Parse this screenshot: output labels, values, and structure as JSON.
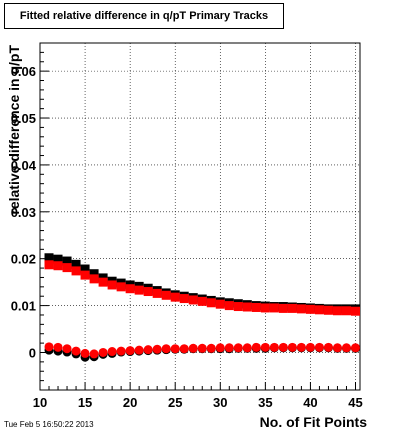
{
  "chart_data": {
    "type": "scatter",
    "title": "Fitted relative difference in q/pT Primary Tracks",
    "xlabel": "No. of Fit Points",
    "ylabel": "relative difference in q/pT",
    "xlim": [
      10,
      45.5
    ],
    "ylim": [
      -0.008,
      0.066
    ],
    "x_ticks": [
      10,
      15,
      20,
      25,
      30,
      35,
      40,
      45
    ],
    "y_ticks": [
      0,
      0.01,
      0.02,
      0.03,
      0.04,
      0.05,
      0.06
    ],
    "y_tick_labels": [
      "0",
      "0.01",
      "0.02",
      "0.03",
      "0.04",
      "0.05",
      "0.06"
    ],
    "grid": true,
    "series": [
      {
        "color": "#000000",
        "marker": "square",
        "x": [
          11,
          12,
          13,
          14,
          15,
          16,
          17,
          18,
          19,
          20,
          21,
          22,
          23,
          24,
          25,
          26,
          27,
          28,
          29,
          30,
          31,
          32,
          33,
          34,
          35,
          36,
          37,
          38,
          39,
          40,
          41,
          42,
          43,
          44,
          45
        ],
        "y": [
          0.0202,
          0.0199,
          0.0195,
          0.0188,
          0.0178,
          0.0168,
          0.0159,
          0.0152,
          0.0148,
          0.0144,
          0.0141,
          0.0137,
          0.0132,
          0.0127,
          0.0123,
          0.012,
          0.0117,
          0.0114,
          0.0111,
          0.0108,
          0.0106,
          0.0104,
          0.0102,
          0.01,
          0.0099,
          0.0098,
          0.0098,
          0.0097,
          0.0096,
          0.0095,
          0.0094,
          0.0093,
          0.0093,
          0.0093,
          0.0093
        ]
      },
      {
        "color": "#ff0000",
        "marker": "square",
        "x": [
          11,
          12,
          13,
          14,
          15,
          16,
          17,
          18,
          19,
          20,
          21,
          22,
          23,
          24,
          25,
          26,
          27,
          28,
          29,
          30,
          31,
          32,
          33,
          34,
          35,
          36,
          37,
          38,
          39,
          40,
          41,
          42,
          43,
          44,
          45
        ],
        "y": [
          0.0187,
          0.0185,
          0.0181,
          0.0174,
          0.0165,
          0.0157,
          0.015,
          0.0144,
          0.014,
          0.0136,
          0.0133,
          0.013,
          0.0126,
          0.0122,
          0.0118,
          0.0115,
          0.0112,
          0.0109,
          0.0106,
          0.0103,
          0.01,
          0.0098,
          0.0097,
          0.0096,
          0.0095,
          0.0095,
          0.0094,
          0.0094,
          0.0093,
          0.0092,
          0.0091,
          0.009,
          0.0089,
          0.0089,
          0.0088
        ]
      },
      {
        "color": "#000000",
        "marker": "circle",
        "x": [
          11,
          12,
          13,
          14,
          15,
          16,
          17,
          18,
          19,
          20,
          21,
          22,
          23,
          24,
          25,
          26,
          27,
          28,
          29,
          30,
          31,
          32,
          33,
          34,
          35,
          36,
          37,
          38,
          39,
          40,
          41,
          42,
          43,
          44,
          45
        ],
        "y": [
          0.0005,
          0.0003,
          0.0001,
          -0.0003,
          -0.001,
          -0.0009,
          -0.0004,
          -0.0002,
          0.0001,
          0.0002,
          0.0003,
          0.0004,
          0.0005,
          0.0006,
          0.0007,
          0.0007,
          0.0008,
          0.0008,
          0.0008,
          0.0008,
          0.0008,
          0.0009,
          0.0009,
          0.0009,
          0.0009,
          0.001,
          0.001,
          0.001,
          0.001,
          0.001,
          0.001,
          0.001,
          0.0009,
          0.0009,
          0.0009
        ]
      },
      {
        "color": "#ff0000",
        "marker": "circle",
        "x": [
          11,
          12,
          13,
          14,
          15,
          16,
          17,
          18,
          19,
          20,
          21,
          22,
          23,
          24,
          25,
          26,
          27,
          28,
          29,
          30,
          31,
          32,
          33,
          34,
          35,
          36,
          37,
          38,
          39,
          40,
          41,
          42,
          43,
          44,
          45
        ],
        "y": [
          0.0012,
          0.0011,
          0.0008,
          0.0003,
          -0.0002,
          -0.0003,
          0.0,
          0.0002,
          0.0003,
          0.0004,
          0.0005,
          0.0006,
          0.0007,
          0.0008,
          0.0008,
          0.0008,
          0.0009,
          0.0009,
          0.0009,
          0.001,
          0.001,
          0.001,
          0.001,
          0.0011,
          0.0011,
          0.0011,
          0.0011,
          0.0011,
          0.0011,
          0.0011,
          0.0011,
          0.0011,
          0.001,
          0.001,
          0.001
        ]
      }
    ]
  },
  "footer": {
    "timestamp": "Tue Feb  5 16:50:22 2013"
  }
}
